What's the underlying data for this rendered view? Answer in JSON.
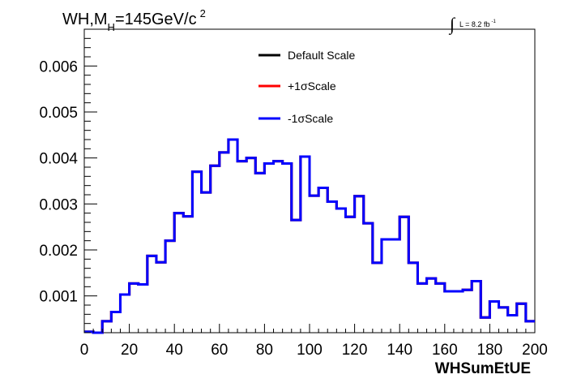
{
  "chart_data": {
    "type": "line",
    "title": {
      "prefix": "WH,M",
      "subscript": "H",
      "middle": "=145GeV/c",
      "superscript": "2"
    },
    "lumi": {
      "integral": "∫",
      "text": "L = 8.2 fb",
      "superscript": "-1"
    },
    "xlabel": "WHSumEtUE",
    "ylabel": "",
    "xlim": [
      0,
      200
    ],
    "ylim": [
      0.0002,
      0.0068
    ],
    "x_ticks": [
      0,
      20,
      40,
      60,
      80,
      100,
      120,
      140,
      160,
      180,
      200
    ],
    "x_tick_labels": [
      "0",
      "20",
      "40",
      "60",
      "80",
      "100",
      "120",
      "140",
      "160",
      "180",
      "200"
    ],
    "y_ticks": [
      0.001,
      0.002,
      0.003,
      0.004,
      0.005,
      0.006
    ],
    "y_tick_labels": [
      "0.001",
      "0.002",
      "0.003",
      "0.004",
      "0.005",
      "0.006"
    ],
    "bin_width": 4,
    "bin_edges_start": 0,
    "legend_position": "top-center",
    "series": [
      {
        "name": "Default Scale",
        "color": "#000000",
        "values": [
          0.00022,
          0.0002,
          0.00045,
          0.00065,
          0.00103,
          0.00127,
          0.00125,
          0.00187,
          0.00173,
          0.0022,
          0.0028,
          0.00273,
          0.0037,
          0.00325,
          0.00383,
          0.00412,
          0.0044,
          0.00393,
          0.004,
          0.00367,
          0.00388,
          0.00393,
          0.00388,
          0.00265,
          0.00403,
          0.00318,
          0.00335,
          0.00305,
          0.0029,
          0.00272,
          0.00317,
          0.00258,
          0.00172,
          0.00223,
          0.00223,
          0.00272,
          0.00172,
          0.00127,
          0.00138,
          0.00127,
          0.0011,
          0.0011,
          0.00113,
          0.00132,
          0.00053,
          0.00088,
          0.00075,
          0.00058,
          0.00083,
          0.00045
        ]
      },
      {
        "name": "+1σScale",
        "color": "#ff0000",
        "values": [
          0.00022,
          0.0002,
          0.00045,
          0.00065,
          0.00103,
          0.00127,
          0.00125,
          0.00187,
          0.00173,
          0.0022,
          0.0028,
          0.00273,
          0.0037,
          0.00325,
          0.00383,
          0.00412,
          0.0044,
          0.00393,
          0.004,
          0.00367,
          0.00388,
          0.00393,
          0.00388,
          0.00265,
          0.00403,
          0.00318,
          0.00335,
          0.00305,
          0.0029,
          0.00272,
          0.00317,
          0.00258,
          0.00172,
          0.00223,
          0.00223,
          0.00272,
          0.00172,
          0.00127,
          0.00138,
          0.00127,
          0.0011,
          0.0011,
          0.00113,
          0.00132,
          0.00053,
          0.00088,
          0.00075,
          0.00058,
          0.00083,
          0.00045
        ]
      },
      {
        "name": "-1σScale",
        "color": "#0000ff",
        "values": [
          0.00022,
          0.0002,
          0.00045,
          0.00065,
          0.00103,
          0.00127,
          0.00125,
          0.00187,
          0.00173,
          0.0022,
          0.0028,
          0.00273,
          0.0037,
          0.00325,
          0.00383,
          0.00412,
          0.0044,
          0.00393,
          0.004,
          0.00367,
          0.00388,
          0.00393,
          0.00388,
          0.00265,
          0.00403,
          0.00318,
          0.00335,
          0.00305,
          0.0029,
          0.00272,
          0.00317,
          0.00258,
          0.00172,
          0.00223,
          0.00223,
          0.00272,
          0.00172,
          0.00127,
          0.00138,
          0.00127,
          0.0011,
          0.0011,
          0.00113,
          0.00132,
          0.00053,
          0.00088,
          0.00075,
          0.00058,
          0.00083,
          0.00045
        ]
      }
    ]
  }
}
